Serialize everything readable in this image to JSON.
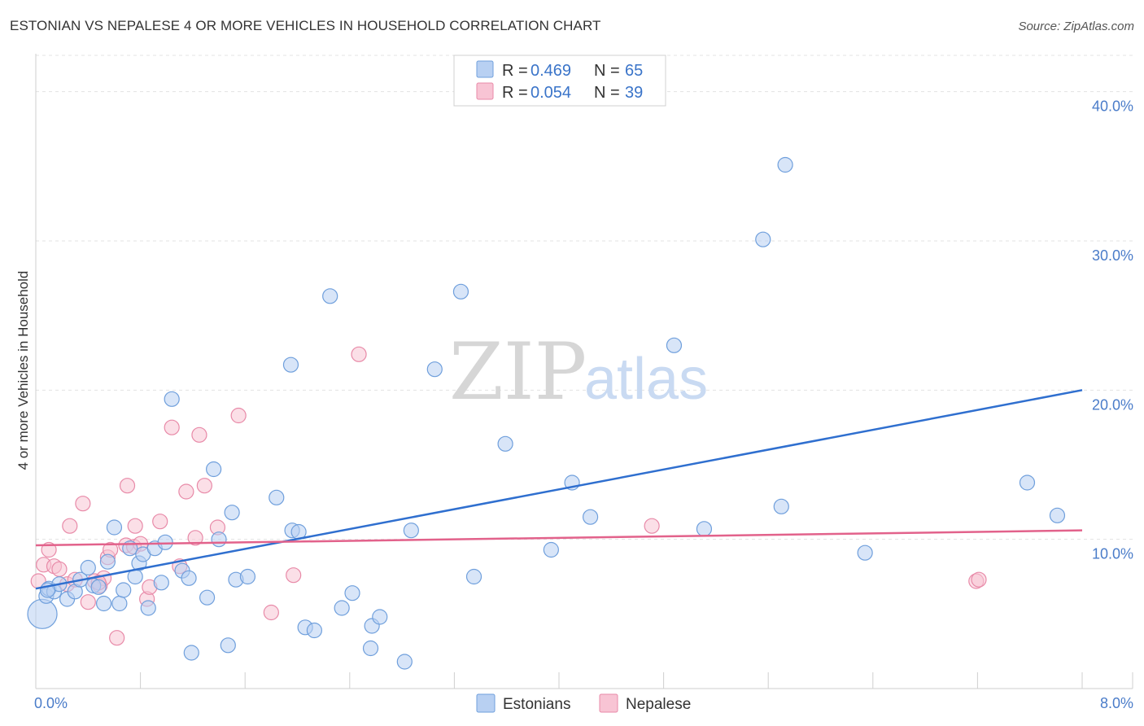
{
  "title": "ESTONIAN VS NEPALESE 4 OR MORE VEHICLES IN HOUSEHOLD CORRELATION CHART",
  "source": "Source: ZipAtlas.com",
  "watermark": {
    "zip": "ZIP",
    "atlas": "atlas"
  },
  "colors": {
    "estonians_fill": "#b8d0f2",
    "estonians_stroke": "#6f9fdc",
    "estonians_line": "#2f6fcf",
    "nepalese_fill": "#f8c4d4",
    "nepalese_stroke": "#e88aa8",
    "nepalese_line": "#e2628b",
    "grid": "#e3e3e3",
    "tick_label": "#4a7cc9"
  },
  "legend": {
    "r_label": "R =",
    "n_label": "N =",
    "entries": [
      {
        "series": "Estonians",
        "r": "0.469",
        "n": "65"
      },
      {
        "series": "Nepalese",
        "r": "0.054",
        "n": "39"
      }
    ]
  },
  "chart_data": {
    "type": "scatter",
    "title": "ESTONIAN VS NEPALESE 4 OR MORE VEHICLES IN HOUSEHOLD CORRELATION CHART",
    "xlabel": "",
    "ylabel": "4 or more Vehicles in Household",
    "xlim": [
      0,
      8
    ],
    "ylim": [
      0,
      42
    ],
    "x_tick_labels": [
      {
        "value": 0,
        "label": "0.0%"
      },
      {
        "value": 8,
        "label": "8.0%"
      }
    ],
    "y_ticks": [
      {
        "value": 10,
        "label": "10.0%"
      },
      {
        "value": 20,
        "label": "20.0%"
      },
      {
        "value": 30,
        "label": "30.0%"
      },
      {
        "value": 40,
        "label": "40.0%"
      }
    ],
    "grid": true,
    "legend_position": "top-center",
    "series": [
      {
        "name": "Estonians",
        "r": 0.469,
        "n": 65,
        "trend": {
          "x": [
            0,
            8
          ],
          "y": [
            6.7,
            20.0
          ]
        },
        "points": [
          {
            "x": 0.05,
            "y": 5.0,
            "large": true
          },
          {
            "x": 0.08,
            "y": 6.2
          },
          {
            "x": 0.1,
            "y": 6.7
          },
          {
            "x": 0.14,
            "y": 6.5
          },
          {
            "x": 0.18,
            "y": 7.0
          },
          {
            "x": 0.24,
            "y": 6.0
          },
          {
            "x": 0.3,
            "y": 6.5
          },
          {
            "x": 0.34,
            "y": 7.3
          },
          {
            "x": 0.4,
            "y": 8.1
          },
          {
            "x": 0.44,
            "y": 6.9
          },
          {
            "x": 0.48,
            "y": 6.8
          },
          {
            "x": 0.52,
            "y": 5.7
          },
          {
            "x": 0.55,
            "y": 8.5
          },
          {
            "x": 0.6,
            "y": 10.8
          },
          {
            "x": 0.64,
            "y": 5.7
          },
          {
            "x": 0.67,
            "y": 6.6
          },
          {
            "x": 0.72,
            "y": 9.4
          },
          {
            "x": 0.76,
            "y": 7.5
          },
          {
            "x": 0.79,
            "y": 8.4
          },
          {
            "x": 0.82,
            "y": 9.0
          },
          {
            "x": 0.86,
            "y": 5.4
          },
          {
            "x": 0.91,
            "y": 9.4
          },
          {
            "x": 0.96,
            "y": 7.1
          },
          {
            "x": 0.99,
            "y": 9.8
          },
          {
            "x": 1.04,
            "y": 19.4
          },
          {
            "x": 1.12,
            "y": 7.9
          },
          {
            "x": 1.17,
            "y": 7.4
          },
          {
            "x": 1.19,
            "y": 2.4
          },
          {
            "x": 1.31,
            "y": 6.1
          },
          {
            "x": 1.36,
            "y": 14.7
          },
          {
            "x": 1.4,
            "y": 10.0
          },
          {
            "x": 1.47,
            "y": 2.9
          },
          {
            "x": 1.5,
            "y": 11.8
          },
          {
            "x": 1.53,
            "y": 7.3
          },
          {
            "x": 1.62,
            "y": 7.5
          },
          {
            "x": 1.84,
            "y": 12.8
          },
          {
            "x": 1.95,
            "y": 21.7
          },
          {
            "x": 1.96,
            "y": 10.6
          },
          {
            "x": 2.01,
            "y": 10.5
          },
          {
            "x": 2.06,
            "y": 4.1
          },
          {
            "x": 2.13,
            "y": 3.9
          },
          {
            "x": 2.25,
            "y": 26.3
          },
          {
            "x": 2.34,
            "y": 5.4
          },
          {
            "x": 2.42,
            "y": 6.4
          },
          {
            "x": 2.56,
            "y": 2.7
          },
          {
            "x": 2.57,
            "y": 4.2
          },
          {
            "x": 2.63,
            "y": 4.8
          },
          {
            "x": 2.82,
            "y": 1.8
          },
          {
            "x": 2.87,
            "y": 10.6
          },
          {
            "x": 3.05,
            "y": 21.4
          },
          {
            "x": 3.25,
            "y": 26.6
          },
          {
            "x": 3.35,
            "y": 7.5
          },
          {
            "x": 3.59,
            "y": 16.4
          },
          {
            "x": 3.94,
            "y": 9.3
          },
          {
            "x": 4.1,
            "y": 13.8
          },
          {
            "x": 4.24,
            "y": 11.5
          },
          {
            "x": 4.88,
            "y": 23.0
          },
          {
            "x": 5.11,
            "y": 10.7
          },
          {
            "x": 5.56,
            "y": 30.1
          },
          {
            "x": 5.7,
            "y": 12.2
          },
          {
            "x": 5.73,
            "y": 35.1
          },
          {
            "x": 6.34,
            "y": 9.1
          },
          {
            "x": 7.58,
            "y": 13.8
          },
          {
            "x": 7.81,
            "y": 11.6
          },
          {
            "x": 0.09,
            "y": 6.6
          }
        ]
      },
      {
        "name": "Nepalese",
        "r": 0.054,
        "n": 39,
        "trend": {
          "x": [
            0,
            8
          ],
          "y": [
            9.6,
            10.6
          ]
        },
        "points": [
          {
            "x": 0.02,
            "y": 7.2
          },
          {
            "x": 0.06,
            "y": 8.3
          },
          {
            "x": 0.1,
            "y": 9.3
          },
          {
            "x": 0.14,
            "y": 8.2
          },
          {
            "x": 0.18,
            "y": 8.0
          },
          {
            "x": 0.24,
            "y": 7.0
          },
          {
            "x": 0.26,
            "y": 10.9
          },
          {
            "x": 0.3,
            "y": 7.3
          },
          {
            "x": 0.36,
            "y": 12.4
          },
          {
            "x": 0.4,
            "y": 5.8
          },
          {
            "x": 0.45,
            "y": 7.2
          },
          {
            "x": 0.49,
            "y": 6.9
          },
          {
            "x": 0.52,
            "y": 7.4
          },
          {
            "x": 0.55,
            "y": 8.8
          },
          {
            "x": 0.57,
            "y": 9.3
          },
          {
            "x": 0.62,
            "y": 3.4
          },
          {
            "x": 0.69,
            "y": 9.6
          },
          {
            "x": 0.7,
            "y": 13.6
          },
          {
            "x": 0.75,
            "y": 9.5
          },
          {
            "x": 0.76,
            "y": 10.9
          },
          {
            "x": 0.8,
            "y": 9.7
          },
          {
            "x": 0.85,
            "y": 6.0
          },
          {
            "x": 0.87,
            "y": 6.8
          },
          {
            "x": 0.95,
            "y": 11.2
          },
          {
            "x": 1.04,
            "y": 17.5
          },
          {
            "x": 1.1,
            "y": 8.2
          },
          {
            "x": 1.15,
            "y": 13.2
          },
          {
            "x": 1.22,
            "y": 10.1
          },
          {
            "x": 1.25,
            "y": 17.0
          },
          {
            "x": 1.29,
            "y": 13.6
          },
          {
            "x": 1.39,
            "y": 10.8
          },
          {
            "x": 1.55,
            "y": 18.3
          },
          {
            "x": 1.8,
            "y": 5.1
          },
          {
            "x": 1.97,
            "y": 7.6
          },
          {
            "x": 2.47,
            "y": 22.4
          },
          {
            "x": 4.71,
            "y": 10.9
          },
          {
            "x": 7.19,
            "y": 7.2
          },
          {
            "x": 7.21,
            "y": 7.3
          },
          {
            "x": 0.48,
            "y": 7.1
          }
        ]
      }
    ],
    "bottom_legend": [
      "Estonians",
      "Nepalese"
    ]
  }
}
